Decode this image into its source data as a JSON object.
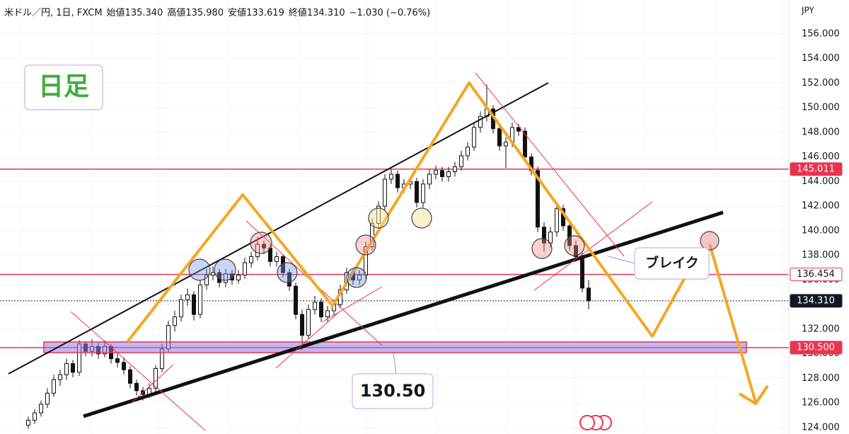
{
  "chart_data": {
    "type": "candlestick",
    "header": [
      "米ドル／円, 1日, FXCM",
      "始値135.340",
      "高値135.980",
      "安値133.619",
      "終値134.310",
      "−1.030 (−0.76%)"
    ],
    "y_unit": "JPY",
    "ylim": [
      123.48,
      158.76
    ],
    "yticks": [
      {
        "value": 124,
        "label": "124.000"
      },
      {
        "value": 126,
        "label": "126.000"
      },
      {
        "value": 128,
        "label": "128.000"
      },
      {
        "value": 130,
        "label": "130.000"
      },
      {
        "value": 132,
        "label": "132.000"
      },
      {
        "value": 134,
        "label": "134.000"
      },
      {
        "value": 136,
        "label": "136.000"
      },
      {
        "value": 138,
        "label": "138.000"
      },
      {
        "value": 140,
        "label": "140.000"
      },
      {
        "value": 142,
        "label": "142.000"
      },
      {
        "value": 144,
        "label": "144.000"
      },
      {
        "value": 146,
        "label": "146.000"
      },
      {
        "value": 148,
        "label": "148.000"
      },
      {
        "value": 150,
        "label": "150.000"
      },
      {
        "value": 152,
        "label": "152.000"
      },
      {
        "value": 154,
        "label": "154.000"
      },
      {
        "value": 156,
        "label": "156.000"
      }
    ],
    "grid": true,
    "up_color": "#ffffff",
    "down_color": "#111111",
    "ohlc": [
      [
        124.2,
        124.9,
        123.9,
        124.6
      ],
      [
        124.6,
        125.5,
        124.3,
        125.2
      ],
      [
        125.2,
        126.2,
        124.9,
        125.9
      ],
      [
        125.9,
        127.2,
        125.6,
        126.8
      ],
      [
        126.8,
        128.3,
        126.5,
        127.9
      ],
      [
        127.9,
        128.7,
        127.4,
        128.3
      ],
      [
        128.3,
        129.6,
        127.9,
        129.2
      ],
      [
        129.2,
        129.5,
        128.1,
        128.5
      ],
      [
        128.5,
        131.1,
        128.2,
        130.8
      ],
      [
        130.8,
        131.0,
        129.8,
        130.2
      ],
      [
        130.2,
        131.2,
        129.8,
        130.6
      ],
      [
        130.6,
        130.9,
        129.6,
        130.0
      ],
      [
        130.0,
        131.1,
        129.7,
        130.6
      ],
      [
        130.6,
        130.8,
        129.2,
        129.6
      ],
      [
        129.6,
        130.0,
        128.9,
        129.3
      ],
      [
        129.3,
        129.7,
        128.3,
        128.7
      ],
      [
        128.7,
        129.0,
        127.2,
        127.6
      ],
      [
        127.6,
        127.9,
        126.6,
        127.0
      ],
      [
        127.0,
        127.3,
        126.2,
        126.7
      ],
      [
        126.7,
        127.6,
        126.4,
        127.2
      ],
      [
        127.2,
        129.1,
        126.9,
        128.8
      ],
      [
        128.8,
        130.8,
        128.5,
        130.4
      ],
      [
        130.4,
        132.7,
        130.1,
        132.3
      ],
      [
        132.3,
        133.5,
        131.8,
        133.0
      ],
      [
        133.0,
        134.8,
        132.6,
        134.4
      ],
      [
        134.4,
        135.3,
        133.9,
        134.8
      ],
      [
        134.8,
        135.1,
        132.7,
        133.2
      ],
      [
        133.2,
        136.0,
        132.9,
        135.6
      ],
      [
        135.6,
        136.9,
        135.2,
        136.4
      ],
      [
        136.4,
        137.1,
        136.0,
        136.6
      ],
      [
        136.6,
        136.9,
        135.4,
        135.8
      ],
      [
        135.8,
        136.9,
        135.4,
        136.5
      ],
      [
        136.5,
        136.8,
        135.6,
        136.0
      ],
      [
        136.0,
        136.8,
        135.7,
        136.4
      ],
      [
        136.4,
        137.8,
        136.1,
        137.4
      ],
      [
        137.4,
        138.3,
        137.0,
        137.9
      ],
      [
        137.9,
        139.5,
        137.6,
        138.9
      ],
      [
        138.9,
        139.2,
        138.1,
        138.6
      ],
      [
        138.6,
        138.9,
        137.1,
        137.5
      ],
      [
        137.5,
        138.3,
        137.1,
        137.9
      ],
      [
        137.9,
        138.1,
        136.2,
        136.6
      ],
      [
        136.6,
        136.9,
        135.1,
        135.5
      ],
      [
        135.5,
        135.8,
        132.8,
        133.2
      ],
      [
        133.2,
        133.6,
        130.3,
        131.5
      ],
      [
        131.5,
        134.0,
        131.2,
        133.6
      ],
      [
        133.6,
        134.7,
        133.2,
        134.2
      ],
      [
        134.2,
        134.5,
        132.6,
        133.0
      ],
      [
        133.0,
        133.9,
        132.6,
        133.5
      ],
      [
        133.5,
        134.4,
        133.1,
        134.0
      ],
      [
        134.0,
        135.6,
        133.7,
        135.2
      ],
      [
        135.2,
        137.0,
        134.9,
        136.6
      ],
      [
        136.6,
        136.9,
        135.6,
        136.0
      ],
      [
        136.0,
        136.8,
        135.6,
        136.4
      ],
      [
        136.4,
        139.1,
        136.1,
        138.7
      ],
      [
        138.7,
        141.0,
        138.4,
        140.6
      ],
      [
        140.6,
        142.4,
        140.2,
        142.0
      ],
      [
        142.0,
        144.6,
        141.7,
        144.2
      ],
      [
        144.2,
        145.0,
        143.8,
        144.6
      ],
      [
        144.6,
        144.9,
        143.1,
        143.5
      ],
      [
        143.5,
        144.2,
        143.1,
        143.8
      ],
      [
        143.8,
        144.4,
        143.4,
        144.0
      ],
      [
        144.0,
        144.3,
        141.9,
        142.3
      ],
      [
        142.3,
        144.2,
        141.9,
        143.8
      ],
      [
        143.8,
        145.0,
        143.4,
        144.6
      ],
      [
        144.6,
        145.3,
        144.2,
        144.9
      ],
      [
        144.9,
        145.2,
        144.0,
        144.4
      ],
      [
        144.4,
        145.2,
        144.0,
        144.8
      ],
      [
        144.8,
        145.6,
        144.4,
        145.2
      ],
      [
        145.2,
        146.5,
        144.9,
        146.1
      ],
      [
        146.1,
        147.2,
        145.7,
        146.8
      ],
      [
        146.8,
        148.8,
        146.5,
        148.4
      ],
      [
        148.4,
        149.7,
        148.0,
        149.3
      ],
      [
        149.3,
        151.9,
        148.9,
        149.9
      ],
      [
        149.9,
        150.2,
        147.9,
        148.3
      ],
      [
        148.3,
        148.6,
        146.5,
        146.9
      ],
      [
        146.9,
        147.6,
        145.1,
        147.2
      ],
      [
        147.2,
        148.8,
        146.8,
        148.4
      ],
      [
        148.4,
        148.7,
        147.7,
        148.1
      ],
      [
        148.1,
        148.4,
        145.6,
        146.0
      ],
      [
        146.0,
        146.3,
        144.5,
        144.9
      ],
      [
        144.9,
        145.2,
        139.9,
        140.3
      ],
      [
        140.3,
        140.7,
        138.3,
        139.0
      ],
      [
        139.0,
        140.3,
        138.6,
        139.9
      ],
      [
        139.9,
        142.2,
        139.5,
        141.8
      ],
      [
        141.8,
        142.1,
        140.0,
        140.4
      ],
      [
        140.4,
        140.8,
        138.4,
        138.8
      ],
      [
        138.8,
        139.2,
        137.5,
        137.9
      ],
      [
        137.9,
        138.2,
        135.0,
        135.34
      ],
      [
        135.34,
        135.98,
        133.619,
        134.31
      ]
    ],
    "price_lines": [
      {
        "price": 145.011,
        "color": "#e8344e",
        "label_style": "filled"
      },
      {
        "price": 136.454,
        "color": "#e8344e",
        "label_style": "outline"
      },
      {
        "price": {
          "value": 134.31,
          "label": "134.310"
        },
        "color": "#131722",
        "label_style": "filled",
        "dotted": true
      },
      {
        "price": {
          "value": 130.5,
          "label": "130.500"
        },
        "color": "#e8344e",
        "label_style": "filled"
      }
    ],
    "annotations": {
      "timeframe": "日足",
      "break": "ブレイク",
      "level": "130.50"
    }
  }
}
